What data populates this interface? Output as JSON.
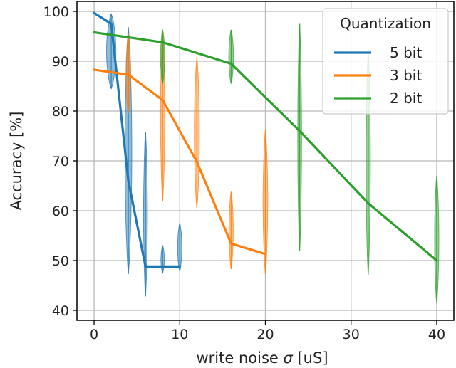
{
  "chart_data": {
    "type": "line",
    "xlabel_prefix": "write noise ",
    "xlabel_symbol": "σ",
    "xlabel_suffix": " [uS]",
    "ylabel": "Accuracy [%]",
    "xlim": [
      -2,
      42
    ],
    "ylim": [
      38,
      102
    ],
    "xticks": [
      0,
      10,
      20,
      30,
      40
    ],
    "yticks": [
      40,
      50,
      60,
      70,
      80,
      90,
      100
    ],
    "grid": true,
    "legend": {
      "title": "Quantization",
      "position": "top-right"
    },
    "series": [
      {
        "name": "5 bit",
        "color": "#1f77b4",
        "x": [
          0,
          2,
          4,
          6,
          8,
          10
        ],
        "y": [
          99.7,
          97.5,
          66,
          48.8,
          48.8,
          48.8
        ],
        "violins": [
          {
            "x": 2,
            "min": 84.5,
            "max": 99.5,
            "width": 1.1
          },
          {
            "x": 4,
            "min": 47.3,
            "max": 96.8,
            "width": 0.8
          },
          {
            "x": 6,
            "min": 42.8,
            "max": 75.8,
            "width": 0.45
          },
          {
            "x": 8,
            "min": 47.5,
            "max": 53,
            "width": 0.4
          },
          {
            "x": 10,
            "min": 47.8,
            "max": 57.5,
            "width": 0.5
          }
        ]
      },
      {
        "name": "3 bit",
        "color": "#ff7f0e",
        "x": [
          0,
          4,
          8,
          12,
          16,
          20
        ],
        "y": [
          88.3,
          87.3,
          82.2,
          69.8,
          53.4,
          51.3
        ],
        "violins": [
          {
            "x": 4,
            "min": 79.5,
            "max": 95.5,
            "width": 0.55
          },
          {
            "x": 8,
            "min": 62,
            "max": 96,
            "width": 0.5
          },
          {
            "x": 12,
            "min": 60.5,
            "max": 90.8,
            "width": 0.6
          },
          {
            "x": 16,
            "min": 48.3,
            "max": 63.8,
            "width": 0.5
          },
          {
            "x": 20,
            "min": 47.3,
            "max": 76.2,
            "width": 0.55
          }
        ]
      },
      {
        "name": "2 bit",
        "color": "#2ca02c",
        "x": [
          0,
          8,
          16,
          24,
          32,
          40
        ],
        "y": [
          95.8,
          93.8,
          89.5,
          76,
          61.5,
          50
        ],
        "violins": [
          {
            "x": 8,
            "min": 85.5,
            "max": 96.3,
            "width": 0.5
          },
          {
            "x": 16,
            "min": 85.5,
            "max": 96.3,
            "width": 0.55
          },
          {
            "x": 24,
            "min": 52,
            "max": 97.5,
            "width": 0.45
          },
          {
            "x": 32,
            "min": 47,
            "max": 92.5,
            "width": 0.5
          },
          {
            "x": 40,
            "min": 41.5,
            "max": 67,
            "width": 0.5
          }
        ]
      }
    ]
  }
}
